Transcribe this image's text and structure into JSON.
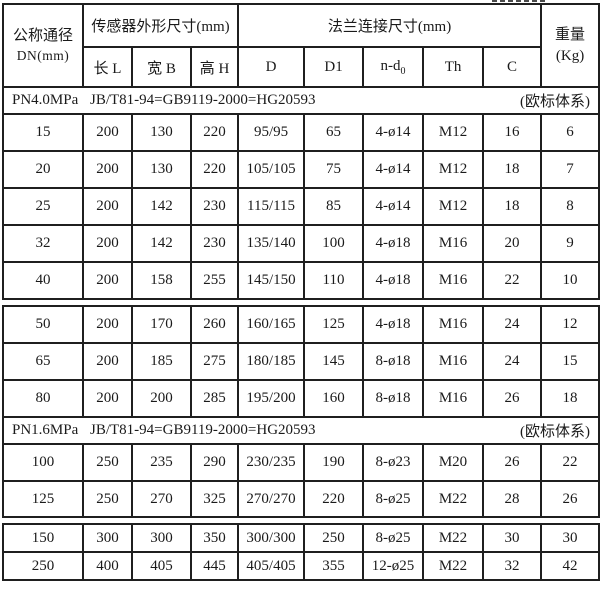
{
  "colors": {
    "background": "#ffffff",
    "border": "#1f1f1f",
    "text": "#1a1a1a"
  },
  "table": {
    "header": {
      "dn_line1": "公称通径",
      "dn_line2": "DN(mm)",
      "sensor_group": "传感器外形尺寸(mm)",
      "flange_group": "法兰连接尺寸(mm)",
      "weight_line1": "重量",
      "weight_line2": "(Kg)",
      "sub": [
        "长 L",
        "宽 B",
        "高 H",
        "D",
        "D1",
        "n-d",
        "Th",
        "C"
      ],
      "n_d_subscript": "0"
    },
    "segments": [
      {
        "rows": [
          {
            "type": "section",
            "pn": "PN4.0MPa",
            "standard": "JB/T81-94=GB9119-2000=HG20593",
            "note": "(欧标体系)"
          },
          {
            "type": "data",
            "cells": [
              "15",
              "200",
              "130",
              "220",
              "95/95",
              "65",
              "4-ø14",
              "M12",
              "16",
              "6"
            ]
          },
          {
            "type": "data",
            "cells": [
              "20",
              "200",
              "130",
              "220",
              "105/105",
              "75",
              "4-ø14",
              "M12",
              "18",
              "7"
            ]
          },
          {
            "type": "data",
            "cells": [
              "25",
              "200",
              "142",
              "230",
              "115/115",
              "85",
              "4-ø14",
              "M12",
              "18",
              "8"
            ]
          },
          {
            "type": "data",
            "cells": [
              "32",
              "200",
              "142",
              "230",
              "135/140",
              "100",
              "4-ø18",
              "M16",
              "20",
              "9"
            ]
          },
          {
            "type": "data",
            "cells": [
              "40",
              "200",
              "158",
              "255",
              "145/150",
              "110",
              "4-ø18",
              "M16",
              "22",
              "10"
            ]
          }
        ]
      },
      {
        "rows": [
          {
            "type": "data",
            "cells": [
              "50",
              "200",
              "170",
              "260",
              "160/165",
              "125",
              "4-ø18",
              "M16",
              "24",
              "12"
            ]
          },
          {
            "type": "data",
            "cells": [
              "65",
              "200",
              "185",
              "275",
              "180/185",
              "145",
              "8-ø18",
              "M16",
              "24",
              "15"
            ]
          },
          {
            "type": "data",
            "cells": [
              "80",
              "200",
              "200",
              "285",
              "195/200",
              "160",
              "8-ø18",
              "M16",
              "26",
              "18"
            ]
          },
          {
            "type": "section",
            "pn": "PN1.6MPa",
            "standard": "JB/T81-94=GB9119-2000=HG20593",
            "note": "(欧标体系)"
          },
          {
            "type": "data",
            "cells": [
              "100",
              "250",
              "235",
              "290",
              "230/235",
              "190",
              "8-ø23",
              "M20",
              "26",
              "22"
            ]
          },
          {
            "type": "data",
            "cells": [
              "125",
              "250",
              "270",
              "325",
              "270/270",
              "220",
              "8-ø25",
              "M22",
              "28",
              "26"
            ]
          }
        ]
      },
      {
        "rows": [
          {
            "type": "data",
            "cells": [
              "150",
              "300",
              "300",
              "350",
              "300/300",
              "250",
              "8-ø25",
              "M22",
              "30",
              "30"
            ]
          },
          {
            "type": "data",
            "cells": [
              "250",
              "400",
              "405",
              "445",
              "405/405",
              "355",
              "12-ø25",
              "M22",
              "32",
              "42"
            ]
          }
        ]
      }
    ]
  }
}
